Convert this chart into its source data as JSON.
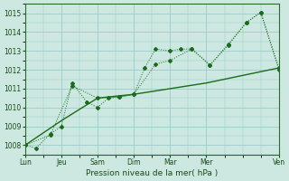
{
  "xlabel": "Pression niveau de la mer( hPa )",
  "background_color": "#cce8e0",
  "grid_color": "#99cccc",
  "line_color": "#1a6b1a",
  "xlim": [
    0,
    7
  ],
  "ylim": [
    1007.5,
    1015.5
  ],
  "yticks": [
    1008,
    1009,
    1010,
    1011,
    1012,
    1013,
    1014,
    1015
  ],
  "xtick_labels": [
    "Lun",
    "Jeu",
    "Sam",
    "Dim",
    "Mar",
    "Mer",
    "Ven"
  ],
  "xtick_positions": [
    0,
    1,
    2,
    3,
    4,
    5,
    7
  ],
  "series1_x": [
    0.0,
    0.3,
    0.7,
    1.0,
    1.3,
    1.7,
    2.0,
    2.3,
    2.6,
    3.0,
    3.3,
    3.6,
    4.0,
    4.3,
    4.6,
    5.1,
    5.6,
    6.1,
    6.5,
    7.0
  ],
  "series1_y": [
    1008.0,
    1007.85,
    1008.6,
    1009.0,
    1011.3,
    1010.3,
    1010.0,
    1010.5,
    1010.55,
    1010.7,
    1012.1,
    1013.1,
    1013.0,
    1013.1,
    1013.1,
    1012.25,
    1013.3,
    1014.5,
    1015.05,
    1012.0
  ],
  "series2_x": [
    0.0,
    0.7,
    1.3,
    2.0,
    2.6,
    3.0,
    3.6,
    4.0,
    4.6,
    5.1,
    5.6,
    6.1,
    6.5,
    7.0
  ],
  "series2_y": [
    1008.0,
    1008.55,
    1011.15,
    1010.5,
    1010.55,
    1010.7,
    1012.3,
    1012.5,
    1013.1,
    1012.25,
    1013.35,
    1014.5,
    1015.05,
    1012.1
  ],
  "series3_x": [
    0.0,
    1.0,
    2.0,
    3.0,
    4.0,
    5.0,
    6.0,
    7.0
  ],
  "series3_y": [
    1008.0,
    1009.3,
    1010.5,
    1010.7,
    1011.0,
    1011.3,
    1011.7,
    1012.1
  ]
}
